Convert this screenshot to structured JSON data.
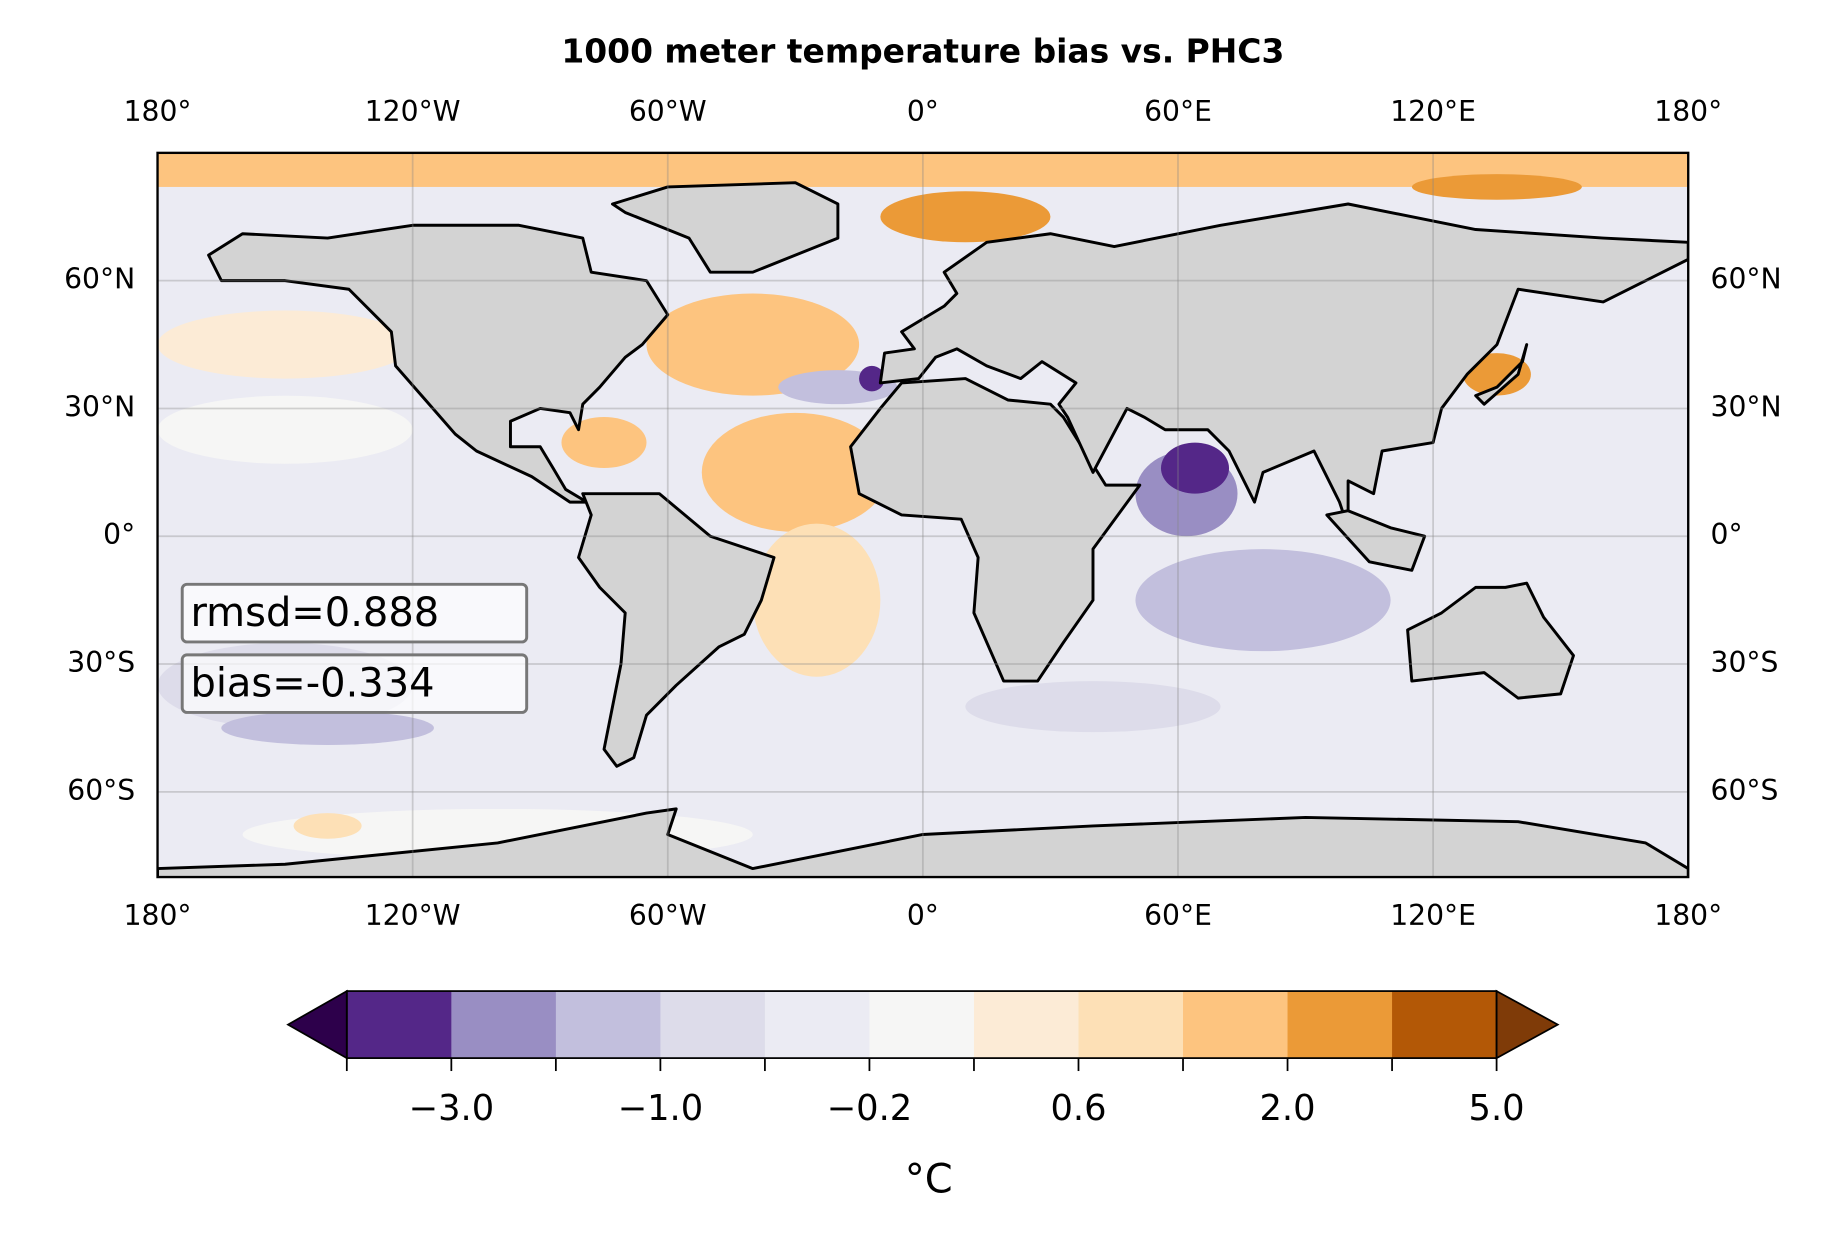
{
  "chart_data": {
    "type": "map",
    "title": "1000 meter temperature bias vs. PHC3",
    "lonlim": [
      -180,
      180
    ],
    "latlim": [
      -80,
      90
    ],
    "xticks": [
      {
        "value": -180,
        "label": "180°"
      },
      {
        "value": -120,
        "label": "120°W"
      },
      {
        "value": -60,
        "label": "60°W"
      },
      {
        "value": 0,
        "label": "0°"
      },
      {
        "value": 60,
        "label": "60°E"
      },
      {
        "value": 120,
        "label": "120°E"
      },
      {
        "value": 180,
        "label": "180°"
      }
    ],
    "yticks": [
      {
        "value": 60,
        "label": "60°N"
      },
      {
        "value": 30,
        "label": "30°N"
      },
      {
        "value": 0,
        "label": "0°"
      },
      {
        "value": -30,
        "label": "30°S"
      },
      {
        "value": -60,
        "label": "60°S"
      }
    ],
    "grid": true,
    "annotations": [
      "rmsd=0.888",
      "bias=-0.334"
    ],
    "colorbar": {
      "label": "°C",
      "levels": [
        -5,
        -3,
        -2,
        -1,
        -0.6,
        -0.2,
        0.2,
        0.6,
        1,
        2,
        3,
        5
      ],
      "ticks": [
        {
          "value": -3,
          "label": "−3.0"
        },
        {
          "value": -1,
          "label": "−1.0"
        },
        {
          "value": -0.2,
          "label": "−0.2"
        },
        {
          "value": 0.6,
          "label": "0.6"
        },
        {
          "value": 2,
          "label": "2.0"
        },
        {
          "value": 5,
          "label": "5.0"
        }
      ],
      "colors": [
        "#542788",
        "#998ec3",
        "#c2bfdd",
        "#dddcea",
        "#ebebf3",
        "#f6f6f5",
        "#fcebd6",
        "#fde0b6",
        "#fdc47f",
        "#eb9a37",
        "#b35806"
      ],
      "under_color": "#2d004b",
      "over_color": "#7f3b08"
    }
  }
}
